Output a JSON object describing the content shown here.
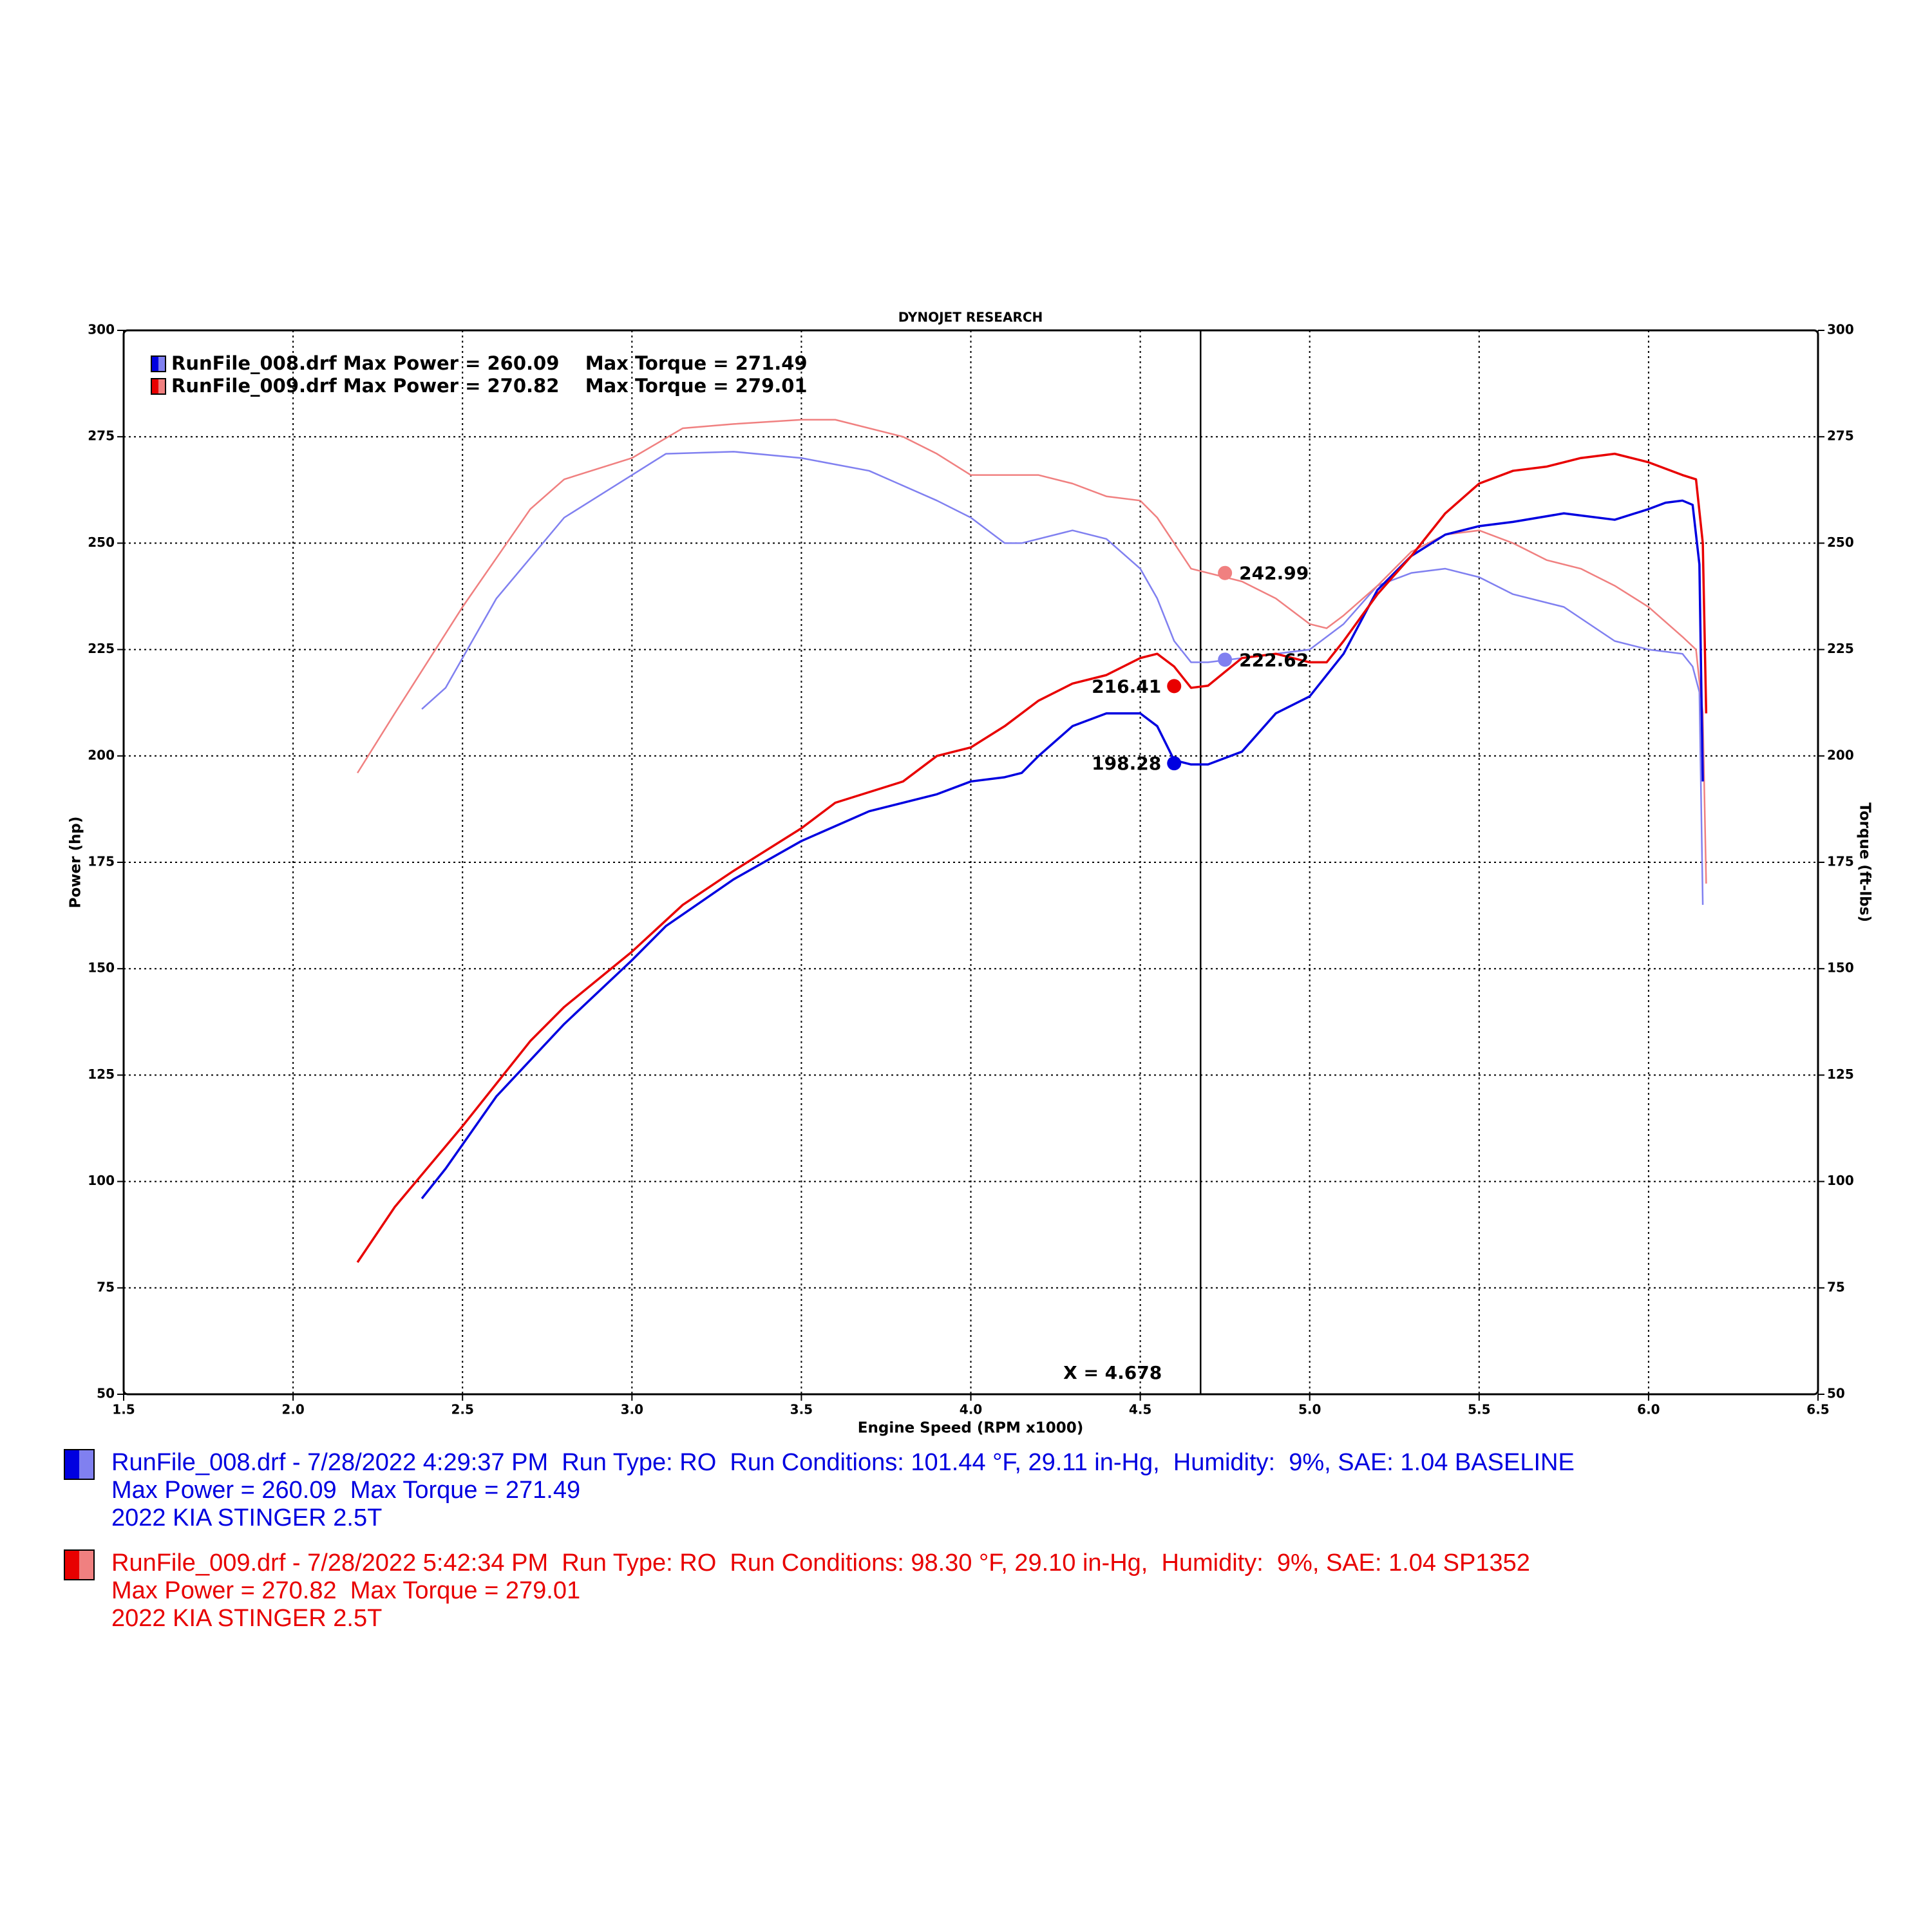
{
  "chart_data": {
    "type": "line",
    "title": "DYNOJET RESEARCH",
    "x_label": "Engine Speed (RPM x1000)",
    "y_label": "Power (hp)",
    "y2_label": "Torque (ft-lbs)",
    "xlim": [
      1.5,
      6.5
    ],
    "ylim": [
      50,
      300
    ],
    "y2lim": [
      50,
      300
    ],
    "grid": true,
    "xticks": [
      1.5,
      {
        "value": 2,
        "label": "2.0"
      },
      2.5,
      {
        "value": 3,
        "label": "3.0"
      },
      3.5,
      {
        "value": 4,
        "label": "4.0"
      },
      4.5,
      {
        "value": 5,
        "label": "5.0"
      },
      5.5,
      {
        "value": 6,
        "label": "6.0"
      },
      6.5
    ],
    "yticks": [
      50,
      75,
      100,
      125,
      150,
      175,
      200,
      225,
      250,
      275,
      300
    ],
    "y2ticks": [
      50,
      75,
      100,
      125,
      150,
      175,
      200,
      225,
      250,
      275,
      300
    ],
    "cursor_x": 4.678,
    "cursor_label": "X = 4.678",
    "runs": [
      {
        "legend": "RunFile_008.drf Max Power = 260.09    Max Torque = 271.49",
        "color": "#0000e0",
        "torque_color": "#8080f0",
        "info": [
          "RunFile_008.drf - 7/28/2022 4:29:37 PM  Run Type: RO  Run Conditions: 101.44 °F, 29.11 in-Hg,  Humidity:  9%, SAE: 1.04 BASELINE",
          "Max Power = 260.09  Max Torque = 271.49",
          "2022 KIA STINGER 2.5T"
        ],
        "x": [
          2.38,
          2.45,
          2.6,
          2.8,
          3.0,
          3.1,
          3.3,
          3.5,
          3.7,
          3.9,
          4.0,
          4.1,
          4.15,
          4.2,
          4.3,
          4.4,
          4.5,
          4.55,
          4.6,
          4.65,
          4.7,
          4.8,
          4.9,
          5.0,
          5.1,
          5.2,
          5.3,
          5.4,
          5.5,
          5.6,
          5.75,
          5.9,
          6.0,
          6.05,
          6.1,
          6.13,
          6.15,
          6.16
        ],
        "power": [
          96,
          103,
          120,
          137,
          152,
          160,
          171,
          180,
          187,
          191,
          194,
          195,
          196,
          200,
          207,
          210,
          210,
          207,
          199,
          198,
          198,
          201,
          210,
          214,
          224,
          239,
          247,
          252,
          254,
          255,
          257,
          255.5,
          258,
          259.5,
          260,
          259,
          245,
          194
        ],
        "torque": [
          211,
          216,
          237,
          256,
          266,
          271,
          271.5,
          270,
          267,
          260,
          256,
          250,
          250,
          251,
          253,
          251,
          244,
          237,
          227,
          222,
          222,
          223,
          224,
          225,
          231,
          240,
          243,
          244,
          242,
          238,
          235,
          227,
          225,
          224.5,
          224,
          221,
          215,
          165
        ],
        "power_marker": {
          "x": 4.6,
          "value": 198.28
        },
        "torque_marker": {
          "x": 4.75,
          "value": 222.62
        }
      },
      {
        "legend": "RunFile_009.drf Max Power = 270.82    Max Torque = 279.01",
        "color": "#e80000",
        "torque_color": "#f08080",
        "info": [
          "RunFile_009.drf - 7/28/2022 5:42:34 PM  Run Type: RO  Run Conditions: 98.30 °F, 29.10 in-Hg,  Humidity:  9%, SAE: 1.04 SP1352",
          "Max Power = 270.82  Max Torque = 279.01",
          "2022 KIA STINGER 2.5T"
        ],
        "x": [
          2.19,
          2.3,
          2.5,
          2.7,
          2.8,
          3.0,
          3.15,
          3.3,
          3.5,
          3.6,
          3.8,
          3.9,
          4.0,
          4.1,
          4.2,
          4.3,
          4.4,
          4.5,
          4.55,
          4.6,
          4.65,
          4.7,
          4.8,
          4.9,
          5.0,
          5.05,
          5.1,
          5.2,
          5.3,
          5.4,
          5.5,
          5.6,
          5.7,
          5.8,
          5.9,
          6.0,
          6.1,
          6.14,
          6.16,
          6.17
        ],
        "power": [
          81,
          94,
          113,
          133,
          141,
          154,
          165,
          173,
          183,
          189,
          194,
          200,
          202,
          207,
          213,
          217,
          219,
          223,
          224,
          221,
          216,
          216.5,
          223,
          224,
          222,
          222,
          227,
          238,
          247,
          257,
          264,
          267,
          268,
          270,
          271,
          269,
          266,
          265,
          250,
          210
        ],
        "torque": [
          196,
          210,
          235,
          258,
          265,
          270,
          277,
          278,
          279,
          279,
          275,
          271,
          266,
          266,
          266,
          264,
          261,
          260,
          256,
          250,
          244,
          243,
          241,
          237,
          231,
          230,
          233,
          240,
          248,
          252,
          253,
          250,
          246,
          244,
          240,
          235,
          228,
          225,
          210,
          170
        ],
        "power_marker": {
          "x": 4.6,
          "value": 216.41
        },
        "torque_marker": {
          "x": 4.75,
          "value": 242.99
        }
      }
    ]
  }
}
